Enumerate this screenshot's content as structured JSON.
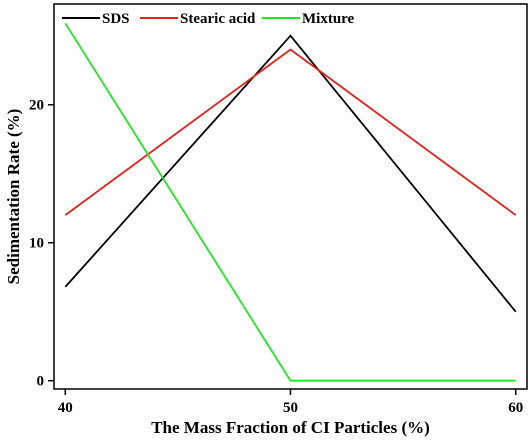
{
  "chart_data": {
    "type": "line",
    "title": "",
    "xlabel": "The Mass Fraction of CI Particles (%)",
    "ylabel": "Sedimentation Rate (%)",
    "x": [
      40,
      50,
      60
    ],
    "xlim": [
      39.5,
      60.5
    ],
    "ylim": [
      -0.6,
      27.3
    ],
    "xticks": [
      40,
      50,
      60
    ],
    "yticks": [
      0,
      10,
      20
    ],
    "grid": false,
    "legend_position": "top",
    "series": [
      {
        "name": "SDS",
        "color": "#000000",
        "values": [
          6.8,
          25.0,
          5.0
        ]
      },
      {
        "name": "Stearic acid",
        "color": "#e8211c",
        "values": [
          12.0,
          24.0,
          12.0
        ]
      },
      {
        "name": "Mixture",
        "color": "#22e622",
        "values": [
          25.9,
          0.0,
          0.0
        ]
      }
    ]
  }
}
